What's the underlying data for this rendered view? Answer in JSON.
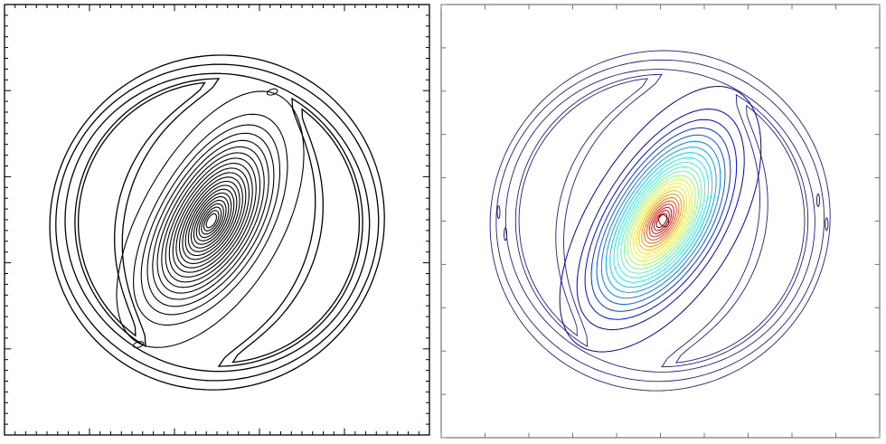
{
  "chart_data": [
    {
      "type": "contour",
      "name": "left",
      "title": "",
      "xlabel": "",
      "ylabel": "",
      "colormap": "mono",
      "line_color": "#000000",
      "tick_labels": [],
      "features": {
        "outer_rings": 3,
        "vortex_levels": 22,
        "vortex_center": [
          -0.22,
          0.05
        ],
        "vortex_tilt_deg": 60,
        "vortex_semi_axes": [
          0.85,
          0.42
        ],
        "grid": false
      }
    },
    {
      "type": "contour",
      "name": "right",
      "title": "",
      "xlabel": "",
      "ylabel": "",
      "colormap": "jet",
      "line_color": "#1a1a9a",
      "tick_labels": [],
      "features": {
        "outer_rings": 3,
        "vortex_levels": 24,
        "vortex_center": [
          0.0,
          0.0
        ],
        "vortex_tilt_deg": 58,
        "vortex_semi_axes": [
          0.88,
          0.43
        ],
        "grid": false
      }
    }
  ]
}
